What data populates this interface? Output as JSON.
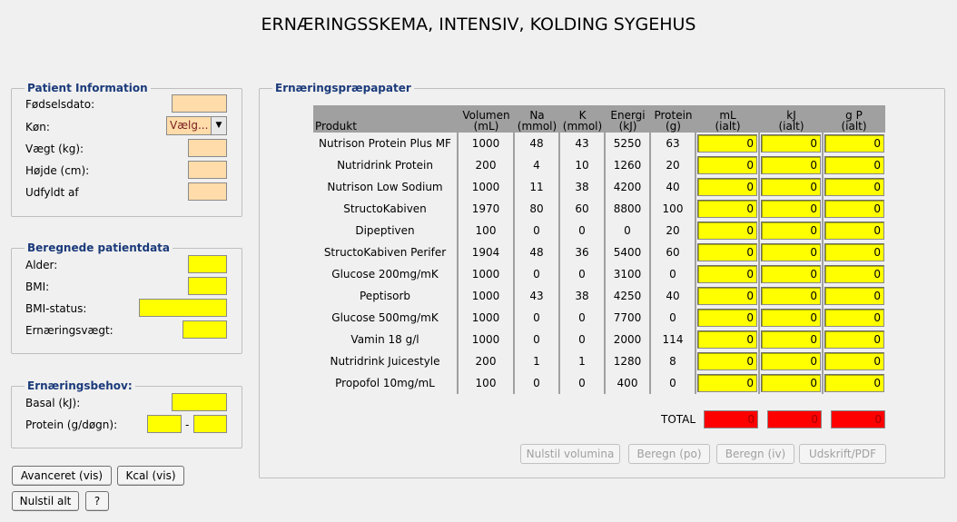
{
  "title": "ERNÆRINGSSKEMA, INTENSIV, KOLDING SYGEHUS",
  "patient_info": {
    "legend": "Patient Information",
    "fields": [
      {
        "label": "Fødselsdato:",
        "value": ""
      },
      {
        "label": "Køn:",
        "value": "Vælg..."
      },
      {
        "label": "Vægt (kg):",
        "value": ""
      },
      {
        "label": "Højde (cm):",
        "value": ""
      },
      {
        "label": "Udfyldt af",
        "value": ""
      }
    ]
  },
  "calculated": {
    "legend": "Beregnede patientdata",
    "fields": [
      {
        "label": "Alder:",
        "value": ""
      },
      {
        "label": "BMI:",
        "value": ""
      },
      {
        "label": "BMI-status:",
        "value": ""
      },
      {
        "label": "Ernæringsvægt:",
        "value": ""
      }
    ]
  },
  "needs": {
    "legend": "Ernæringsbehov:",
    "basal_label": "Basal (kJ):",
    "protein_label": "Protein (g/døgn):",
    "dash": "-"
  },
  "left_buttons": {
    "advanced": "Avanceret (vis)",
    "kcal": "Kcal (vis)",
    "reset_all": "Nulstil alt",
    "help": "?"
  },
  "products": {
    "legend": "Ernæringspræpapater",
    "headers": {
      "product": "Produkt",
      "volume": [
        "Volumen",
        "(mL)"
      ],
      "na": [
        "Na",
        "(mmol)"
      ],
      "k": [
        "K",
        "(mmol)"
      ],
      "energy": [
        "Energi",
        "(kJ)"
      ],
      "protein": [
        "Protein",
        "(g)"
      ],
      "ml_total": [
        "mL",
        "(ialt)"
      ],
      "kj_total": [
        "kJ",
        "(ialt)"
      ],
      "gp_total": [
        "g P",
        "(ialt)"
      ]
    },
    "rows": [
      {
        "name": "Nutrison Protein Plus MF",
        "volume": "1000",
        "na": "48",
        "k": "43",
        "energy": "5250",
        "protein": "63",
        "ml": "0",
        "kj": "0",
        "gp": "0"
      },
      {
        "name": "Nutridrink Protein",
        "volume": "200",
        "na": "4",
        "k": "10",
        "energy": "1260",
        "protein": "20",
        "ml": "0",
        "kj": "0",
        "gp": "0"
      },
      {
        "name": "Nutrison Low Sodium",
        "volume": "1000",
        "na": "11",
        "k": "38",
        "energy": "4200",
        "protein": "40",
        "ml": "0",
        "kj": "0",
        "gp": "0"
      },
      {
        "name": "StructoKabiven",
        "volume": "1970",
        "na": "80",
        "k": "60",
        "energy": "8800",
        "protein": "100",
        "ml": "0",
        "kj": "0",
        "gp": "0"
      },
      {
        "name": "Dipeptiven",
        "volume": "100",
        "na": "0",
        "k": "0",
        "energy": "0",
        "protein": "20",
        "ml": "0",
        "kj": "0",
        "gp": "0"
      },
      {
        "name": "StructoKabiven Perifer",
        "volume": "1904",
        "na": "48",
        "k": "36",
        "energy": "5400",
        "protein": "60",
        "ml": "0",
        "kj": "0",
        "gp": "0"
      },
      {
        "name": "Glucose 200mg/mK",
        "volume": "1000",
        "na": "0",
        "k": "0",
        "energy": "3100",
        "protein": "0",
        "ml": "0",
        "kj": "0",
        "gp": "0"
      },
      {
        "name": "Peptisorb",
        "volume": "1000",
        "na": "43",
        "k": "38",
        "energy": "4250",
        "protein": "40",
        "ml": "0",
        "kj": "0",
        "gp": "0"
      },
      {
        "name": "Glucose 500mg/mK",
        "volume": "1000",
        "na": "0",
        "k": "0",
        "energy": "7700",
        "protein": "0",
        "ml": "0",
        "kj": "0",
        "gp": "0"
      },
      {
        "name": "Vamin 18 g/l",
        "volume": "1000",
        "na": "0",
        "k": "0",
        "energy": "2000",
        "protein": "114",
        "ml": "0",
        "kj": "0",
        "gp": "0"
      },
      {
        "name": "Nutridrink Juicestyle",
        "volume": "200",
        "na": "1",
        "k": "1",
        "energy": "1280",
        "protein": "8",
        "ml": "0",
        "kj": "0",
        "gp": "0"
      },
      {
        "name": "Propofol 10mg/mL",
        "volume": "100",
        "na": "0",
        "k": "0",
        "energy": "400",
        "protein": "0",
        "ml": "0",
        "kj": "0",
        "gp": "0"
      }
    ],
    "total_label": "TOTAL",
    "totals": {
      "ml": "0",
      "kj": "0",
      "gp": "0"
    },
    "buttons": {
      "reset_volumes": "Nulstil volumina",
      "calc_po": "Beregn (po)",
      "calc_iv": "Beregn (iv)",
      "print": "Udskrift/PDF"
    }
  },
  "colors": {
    "patient_input": "#ffdcaa",
    "computed_field": "#ffff00",
    "total_field": "#ff0000",
    "legend_text": "#1a3a7a",
    "table_header": "#a0a0a0"
  }
}
